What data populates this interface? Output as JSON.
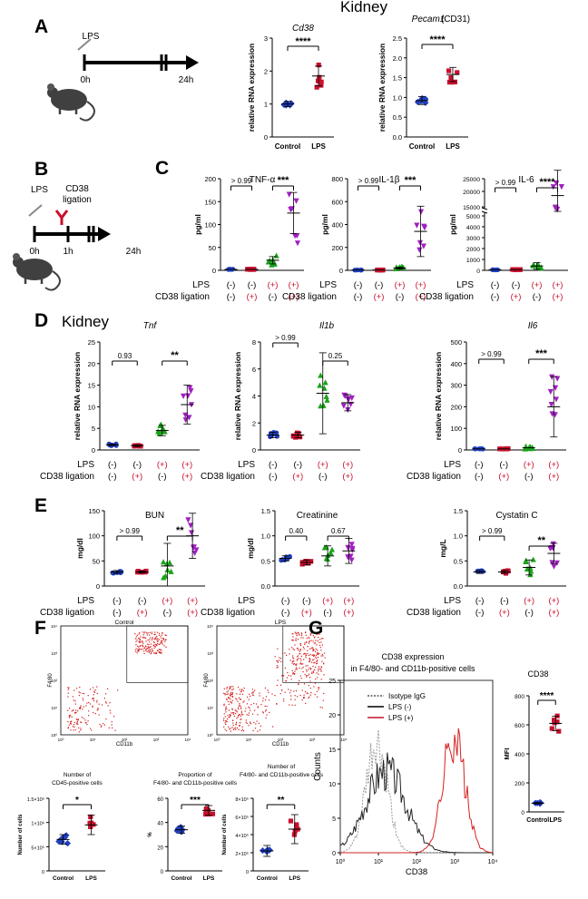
{
  "panel_labels": {
    "A": "A",
    "B": "B",
    "C": "C",
    "D": "D",
    "E": "E",
    "F": "F",
    "G": "G"
  },
  "header": {
    "title": "Kidney"
  },
  "timeline_a": {
    "stim": "LPS",
    "t0": "0h",
    "t1": "24h"
  },
  "timeline_b": {
    "stim": "LPS",
    "ligation": "CD38",
    "ligation2": "ligation",
    "t0": "0h",
    "t1": "1h",
    "t2": "24h"
  },
  "group_rows": {
    "lps_label": "LPS",
    "cd38_label": "CD38 ligation",
    "lps": [
      "(-)",
      "(-)",
      "(+)",
      "(+)"
    ],
    "cd38": [
      "(-)",
      "(+)",
      "(-)",
      "(+)"
    ]
  },
  "panel_d_title": "Kidney",
  "colors": {
    "blue": "#1f3fbf",
    "red": "#c8102e",
    "green": "#1aa31a",
    "purple": "#a020c0",
    "gray": "#888888"
  },
  "chart_data": [
    {
      "id": "a1",
      "type": "scatter",
      "title": "Cd38",
      "ylabel": "relative RNA expression",
      "categories": [
        "Control",
        "LPS"
      ],
      "ylim": [
        0,
        3
      ],
      "yticks": [
        "0",
        "1",
        "2",
        "3"
      ],
      "values": [
        1.0,
        1.85
      ],
      "sig": "****"
    },
    {
      "id": "a2",
      "type": "scatter",
      "title": "Pecam1",
      "title_suffix": "(CD31)",
      "ylabel": "relative RNA expression",
      "categories": [
        "Control",
        "LPS"
      ],
      "ylim": [
        0,
        2.5
      ],
      "yticks": [
        "0.0",
        "0.5",
        "1.0",
        "1.5",
        "2.0",
        "2.5"
      ],
      "values": [
        0.92,
        1.58
      ],
      "sig": "****"
    },
    {
      "id": "c1",
      "type": "scatter",
      "title": "TNF-α",
      "ylabel": "pg/ml",
      "ylim": [
        0,
        200
      ],
      "yticks": [
        "0",
        "50",
        "100",
        "150",
        "200"
      ],
      "values": [
        2,
        2,
        22,
        125
      ],
      "comparisons": [
        "> 0.99",
        "***"
      ]
    },
    {
      "id": "c2",
      "type": "scatter",
      "title": "IL-1β",
      "ylabel": "pg/ml",
      "ylim": [
        0,
        800
      ],
      "yticks": [
        "0",
        "200",
        "400",
        "600",
        "800"
      ],
      "values": [
        3,
        3,
        20,
        340
      ],
      "comparisons": [
        "> 0.99",
        "***"
      ]
    },
    {
      "id": "c3",
      "type": "scatter",
      "title": "IL-6",
      "ylabel": "pg/ml",
      "ylim": [
        0,
        25000
      ],
      "yticks": [
        "0",
        "1000",
        "2000",
        "3000",
        "4000",
        "5000",
        "15000",
        "20000",
        "25000"
      ],
      "values": [
        50,
        60,
        400,
        19000
      ],
      "comparisons": [
        "> 0.99",
        "****"
      ]
    },
    {
      "id": "d1",
      "type": "scatter",
      "title": "Tnf",
      "ylabel": "relative RNA expression",
      "ylim": [
        0,
        25
      ],
      "yticks": [
        "0",
        "5",
        "10",
        "15",
        "20",
        "25"
      ],
      "values": [
        1.2,
        1.0,
        4.5,
        10.5
      ],
      "comparisons": [
        "0.93",
        "**"
      ]
    },
    {
      "id": "d2",
      "type": "scatter",
      "title": "Il1b",
      "ylabel": "relative RNA expression",
      "ylim": [
        0,
        8
      ],
      "yticks": [
        "0",
        "2",
        "4",
        "6",
        "8"
      ],
      "values": [
        1.1,
        1.1,
        4.2,
        3.5
      ],
      "comparisons": [
        "> 0.99",
        "0.25"
      ]
    },
    {
      "id": "d3",
      "type": "scatter",
      "title": "Il6",
      "ylabel": "relative RNA expression",
      "ylim": [
        0,
        500
      ],
      "yticks": [
        "0",
        "100",
        "200",
        "300",
        "400",
        "500"
      ],
      "values": [
        5,
        5,
        10,
        200
      ],
      "comparisons": [
        "> 0.99",
        "***"
      ]
    },
    {
      "id": "e1",
      "type": "scatter",
      "title": "BUN",
      "ylabel": "mg/dl",
      "ylim": [
        0,
        150
      ],
      "yticks": [
        "0",
        "50",
        "100",
        "150"
      ],
      "values": [
        28,
        28,
        40,
        100
      ],
      "comparisons": [
        "> 0.99",
        "**"
      ]
    },
    {
      "id": "e2",
      "type": "scatter",
      "title": "Creatinine",
      "ylabel": "mg/dl",
      "ylim": [
        0,
        1.5
      ],
      "yticks": [
        "0.0",
        "0.5",
        "1.0",
        "1.5"
      ],
      "values": [
        0.55,
        0.47,
        0.6,
        0.7
      ],
      "comparisons": [
        "0.40",
        "0.67"
      ]
    },
    {
      "id": "e3",
      "type": "scatter",
      "title": "Cystatin C",
      "ylabel": "mg/L",
      "ylim": [
        0,
        1.5
      ],
      "yticks": [
        "0.0",
        "0.5",
        "1.0",
        "1.5"
      ],
      "values": [
        0.28,
        0.28,
        0.37,
        0.65
      ],
      "comparisons": [
        "> 0.99",
        "**"
      ]
    },
    {
      "id": "f1",
      "type": "scatter",
      "title": "Number of",
      "title2": "CD45-positive cells",
      "ylabel": "Number of cells",
      "categories": [
        "Control",
        "LPS"
      ],
      "yticks": [
        "0",
        "5×10⁵",
        "1×10⁶",
        "1.5×10⁶"
      ],
      "values": [
        0.65,
        0.95
      ],
      "sig": "*"
    },
    {
      "id": "f2",
      "type": "scatter",
      "title": "Proportion of",
      "title2": "F4/80- and CD11b-positive cells",
      "ylabel": "%",
      "categories": [
        "Control",
        "LPS"
      ],
      "ylim": [
        0,
        60
      ],
      "yticks": [
        "0",
        "20",
        "40",
        "60"
      ],
      "values": [
        34,
        50
      ],
      "sig": "***"
    },
    {
      "id": "f3",
      "type": "scatter",
      "title": "Number of",
      "title2": "F4/80- and CD11b-positive cells",
      "ylabel": "Number of cells",
      "categories": [
        "Control",
        "LPS"
      ],
      "yticks": [
        "0",
        "2×10⁵",
        "4×10⁵",
        "6×10⁵",
        "8×10⁵"
      ],
      "values": [
        2.2,
        4.6
      ],
      "sig": "**"
    },
    {
      "id": "g2",
      "type": "scatter",
      "title": "CD38",
      "ylabel": "MFI",
      "categories": [
        "Control",
        "LPS"
      ],
      "ylim": [
        0,
        800
      ],
      "yticks": [
        "0",
        "200",
        "400",
        "600",
        "800"
      ],
      "values": [
        60,
        610
      ],
      "sig": "****"
    }
  ],
  "flow_f": {
    "control_title": "Control",
    "lps_title": "LPS",
    "xlabel": "CD11b",
    "ylabel": "F4/80"
  },
  "histogram_g": {
    "title": "CD38 expression",
    "subtitle": "in F4/80- and CD11b-positive cells",
    "xlabel": "CD38",
    "ylabel": "Counts",
    "ylim": [
      0,
      25
    ],
    "yticks": [
      "0",
      "5",
      "10",
      "15",
      "20",
      "25"
    ],
    "xticks": [
      "10⁰",
      "10¹",
      "10²",
      "10³",
      "10⁴"
    ],
    "legend": [
      "Isotype IgG",
      "LPS (-)",
      "LPS (+)"
    ]
  }
}
